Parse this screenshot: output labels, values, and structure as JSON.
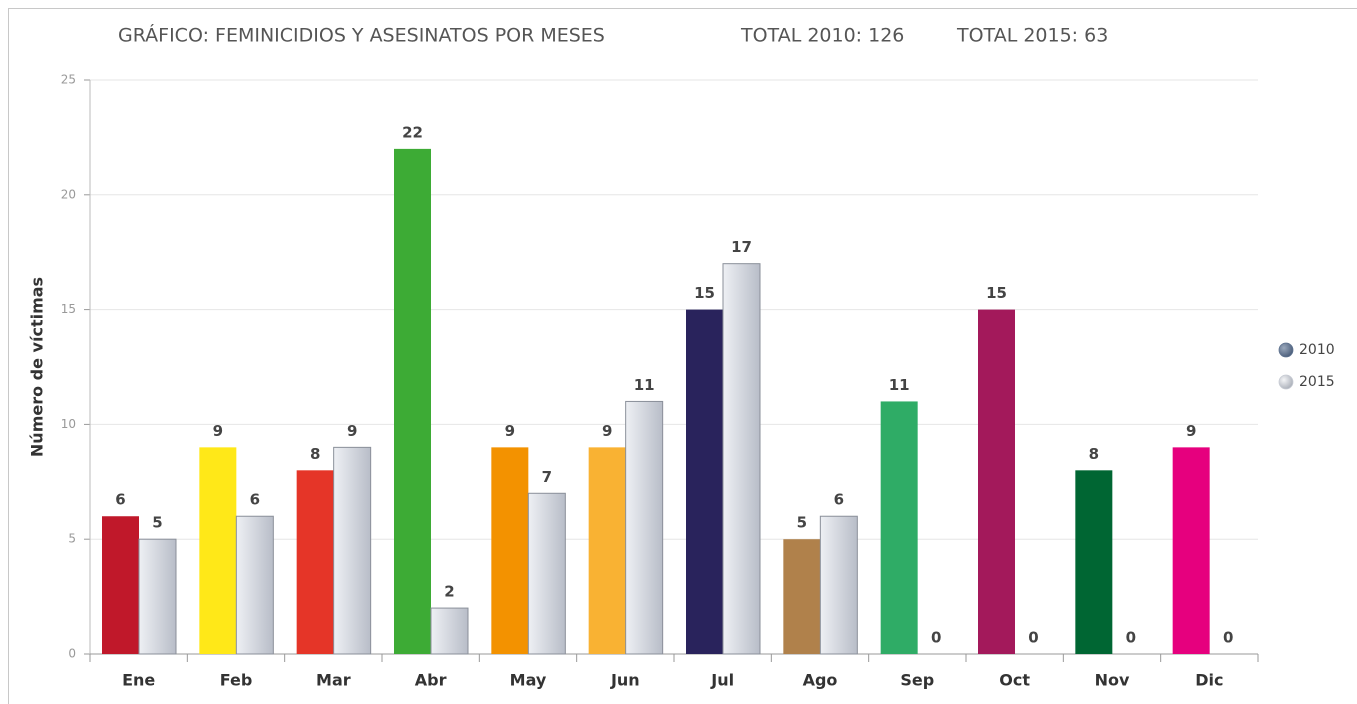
{
  "chart_data": {
    "type": "bar",
    "title": "GRÁFICO: FEMINICIDIOS Y ASESINATOS POR MESES",
    "annotations": [
      "TOTAL 2010: 126",
      "TOTAL 2015: 63"
    ],
    "y_label": "Número de víctimas",
    "categories": [
      "Ene",
      "Feb",
      "Mar",
      "Abr",
      "May",
      "Jun",
      "Jul",
      "Ago",
      "Sep",
      "Oct",
      "Nov",
      "Dic"
    ],
    "series": [
      {
        "name": "2010",
        "color": "#5f7390",
        "colors": [
          "#c0182a",
          "#ffe818",
          "#e53528",
          "#3dab35",
          "#f39200",
          "#f9b233",
          "#29235c",
          "#b0814b",
          "#2fac66",
          "#a3195b",
          "#006633",
          "#e6007e"
        ],
        "values": [
          6,
          9,
          8,
          22,
          9,
          9,
          15,
          5,
          11,
          15,
          8,
          9
        ]
      },
      {
        "name": "2015",
        "color": "#c8ccd4",
        "values": [
          5,
          6,
          9,
          2,
          7,
          11,
          17,
          6,
          0,
          0,
          0,
          0
        ]
      }
    ],
    "ylim": [
      0,
      25
    ],
    "yticks": [
      0,
      5,
      10,
      15,
      20,
      25
    ],
    "grid": true,
    "legend": "right"
  }
}
